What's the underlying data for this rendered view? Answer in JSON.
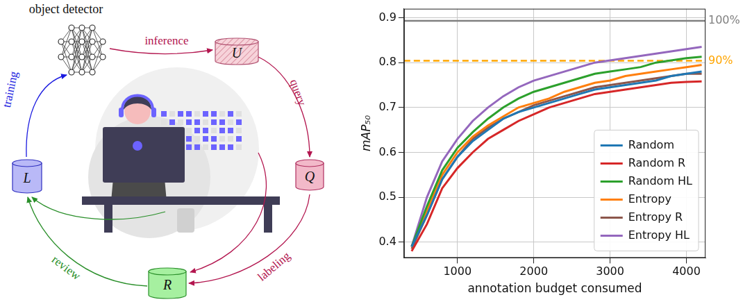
{
  "chart_data": {
    "type": "line",
    "x": [
      400,
      600,
      800,
      1000,
      1200,
      1400,
      1600,
      1800,
      2000,
      2200,
      2400,
      2600,
      2800,
      3000,
      3200,
      3400,
      3600,
      3800,
      4000,
      4200
    ],
    "series": [
      {
        "name": "Random",
        "color": "#1f77b4",
        "values": [
          0.39,
          0.46,
          0.54,
          0.59,
          0.625,
          0.65,
          0.675,
          0.69,
          0.7,
          0.71,
          0.72,
          0.73,
          0.74,
          0.745,
          0.75,
          0.755,
          0.76,
          0.77,
          0.775,
          0.78
        ]
      },
      {
        "name": "Random R",
        "color": "#d62728",
        "values": [
          0.38,
          0.44,
          0.52,
          0.565,
          0.6,
          0.63,
          0.65,
          0.67,
          0.685,
          0.7,
          0.71,
          0.72,
          0.73,
          0.735,
          0.74,
          0.745,
          0.75,
          0.755,
          0.757,
          0.758
        ]
      },
      {
        "name": "Random HL",
        "color": "#2ca02c",
        "values": [
          0.39,
          0.48,
          0.56,
          0.61,
          0.645,
          0.675,
          0.7,
          0.72,
          0.735,
          0.745,
          0.755,
          0.765,
          0.775,
          0.78,
          0.785,
          0.79,
          0.8,
          0.805,
          0.81,
          0.813
        ]
      },
      {
        "name": "Entropy",
        "color": "#ff7f0e",
        "values": [
          0.39,
          0.47,
          0.55,
          0.6,
          0.635,
          0.66,
          0.68,
          0.7,
          0.71,
          0.72,
          0.735,
          0.745,
          0.755,
          0.76,
          0.77,
          0.775,
          0.78,
          0.785,
          0.79,
          0.795
        ]
      },
      {
        "name": "Entropy R",
        "color": "#8c564b",
        "values": [
          0.385,
          0.46,
          0.54,
          0.59,
          0.63,
          0.655,
          0.675,
          0.69,
          0.705,
          0.715,
          0.725,
          0.735,
          0.745,
          0.75,
          0.755,
          0.76,
          0.765,
          0.77,
          0.775,
          0.775
        ]
      },
      {
        "name": "Entropy HL",
        "color": "#9467bd",
        "values": [
          0.39,
          0.5,
          0.58,
          0.63,
          0.67,
          0.7,
          0.725,
          0.745,
          0.76,
          0.77,
          0.78,
          0.79,
          0.8,
          0.805,
          0.81,
          0.815,
          0.82,
          0.825,
          0.83,
          0.835
        ]
      }
    ],
    "xlim": [
      300,
      4250
    ],
    "xticks": [
      1000,
      2000,
      3000,
      4000
    ],
    "ylim": [
      0.365,
      0.92
    ],
    "yticks": [
      0.4,
      0.5,
      0.6,
      0.7,
      0.8,
      0.9
    ],
    "x_label": "annotation budget consumed",
    "y_label": "mAP₅₀",
    "grid": true,
    "legend": "lower right",
    "reference_lines": [
      {
        "value": 0.893,
        "label": "100%",
        "color": "#808080",
        "line_style": "solid"
      },
      {
        "value": 0.804,
        "label": "90%",
        "color": "#ffa500",
        "line_style": "dashed"
      }
    ]
  },
  "diagram": {
    "nodes": [
      {
        "id": "detector",
        "label": "object detector"
      },
      {
        "id": "U",
        "label": "U"
      },
      {
        "id": "Q",
        "label": "Q"
      },
      {
        "id": "R",
        "label": "R"
      },
      {
        "id": "L",
        "label": "L"
      }
    ],
    "edges": [
      {
        "from": "detector",
        "to": "U",
        "label": "inference"
      },
      {
        "from": "U",
        "to": "Q",
        "label": "query"
      },
      {
        "from": "Q",
        "to": "R",
        "label": "labeling"
      },
      {
        "from": "R",
        "to": "L",
        "label": "review"
      },
      {
        "from": "L",
        "to": "detector",
        "label": "training"
      }
    ]
  }
}
